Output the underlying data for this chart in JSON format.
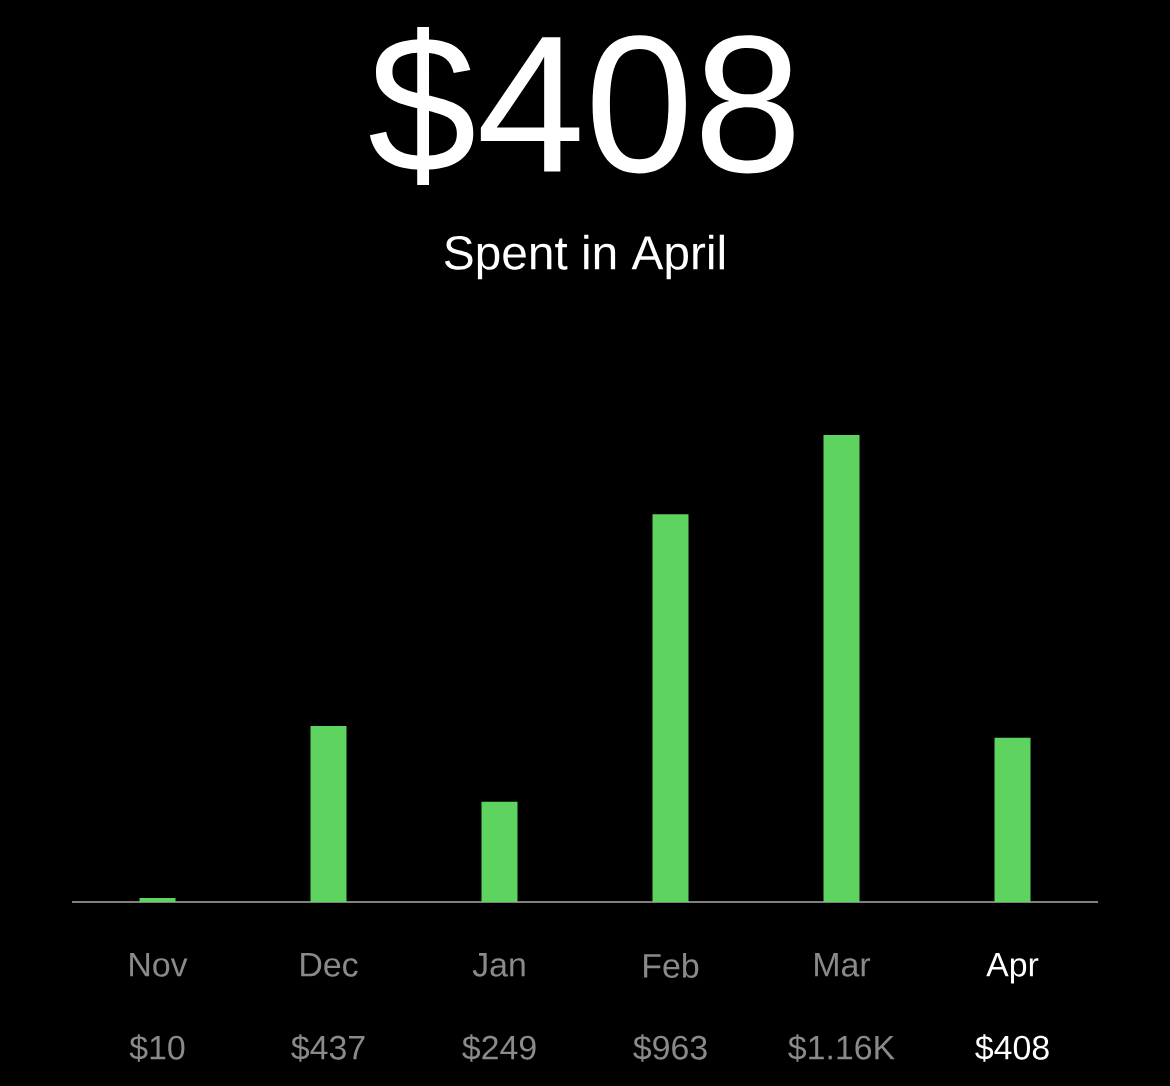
{
  "chart_data": {
    "type": "bar",
    "title": "$408",
    "subtitle": "Spent in April",
    "categories": [
      "Nov",
      "Dec",
      "Jan",
      "Feb",
      "Mar",
      "Apr"
    ],
    "values": [
      10,
      437,
      249,
      963,
      1160,
      408
    ],
    "value_labels": [
      "$10",
      "$437",
      "$249",
      "$963",
      "$1.16K",
      "$408"
    ],
    "color": "#5fd35f",
    "tick_labels": "x"
  }
}
